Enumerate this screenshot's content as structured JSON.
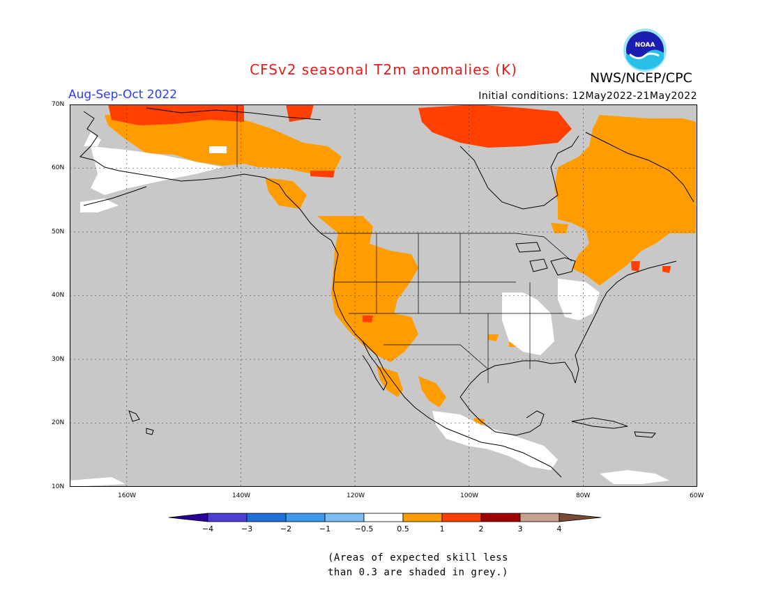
{
  "header": {
    "title": "CFSv2 seasonal T2m anomalies (K)",
    "organization": "NWS/NCEP/CPC",
    "logo_text": "NOAA",
    "period": "Aug-Sep-Oct 2022",
    "initial_conditions": "Initial conditions: 12May2022-21May2022"
  },
  "map": {
    "lat_labels": [
      "70N",
      "60N",
      "50N",
      "40N",
      "30N",
      "20N",
      "10N"
    ],
    "lon_labels": [
      "160W",
      "140W",
      "120W",
      "100W",
      "80W",
      "60W"
    ],
    "extent": {
      "lon": [
        -170,
        -60
      ],
      "lat": [
        10,
        70
      ]
    },
    "grid": "dotted",
    "land_fill": "#c8c8c8",
    "ocean_fill": "#c8c8c8",
    "coastline_color": "#000000"
  },
  "colorbar": {
    "ticks": [
      "−4",
      "−3",
      "−2",
      "−1",
      "−0.5",
      "0.5",
      "1",
      "2",
      "3",
      "4"
    ],
    "colors": [
      "#2a0098",
      "#4b3ed0",
      "#1e6fd8",
      "#3d97ec",
      "#7dbcf2",
      "#ffffff",
      "#ff9d00",
      "#ff4000",
      "#a00000",
      "#c8a090",
      "#7a4a34"
    ]
  },
  "footnote": {
    "line1": "(Areas of expected skill less",
    "line2": "than 0.3 are shaded in grey.)"
  },
  "anomaly_regions": {
    "orange_plus_0_5_to_1": [
      "Alaska interior",
      "Yukon",
      "Pacific Northwest",
      "Great Basin",
      "Southwest US",
      "Northwest Mexico",
      "Quebec",
      "Labrador",
      "Maritimes",
      "New England"
    ],
    "red_1_to_2": [
      "Northern Alaska coast",
      "Hudson Bay / Nunavut",
      "Nova Scotia",
      "Southern Nevada"
    ],
    "white_minus_0_5_to_0_5": [
      "Southern Alaska coast",
      "Mississippi Valley",
      "Ohio Valley",
      "Southern Mexico",
      "Central America"
    ]
  }
}
